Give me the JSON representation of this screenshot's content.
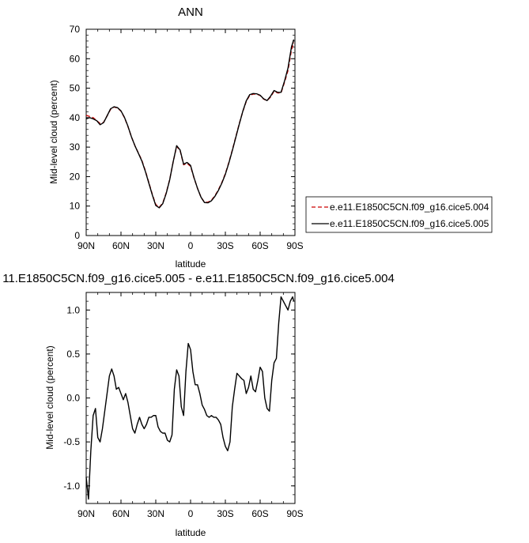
{
  "chart_data": [
    {
      "type": "line",
      "title": "ANN",
      "xlabel": "latitude",
      "ylabel": "Mid-level cloud (percent)",
      "xlim": [
        90,
        -90
      ],
      "ylim": [
        0,
        70
      ],
      "xticks": [
        90,
        60,
        30,
        0,
        -30,
        -60,
        -90
      ],
      "xtick_labels": [
        "90N",
        "60N",
        "30N",
        "0",
        "30S",
        "60S",
        "90S"
      ],
      "yticks": [
        0,
        10,
        20,
        30,
        40,
        50,
        60,
        70
      ],
      "ytick_labels": [
        "0",
        "10",
        "20",
        "30",
        "40",
        "50",
        "60",
        "70"
      ],
      "legend": "right",
      "series": [
        {
          "name": "e.e11.E1850C5CN.f09_g16.cice5.004",
          "color": "#cc0000",
          "dash": "dashed",
          "x": [
            90,
            87,
            84,
            81,
            78,
            75,
            72,
            69,
            66,
            63,
            60,
            57,
            54,
            51,
            48,
            45,
            42,
            39,
            36,
            33,
            30,
            27,
            24,
            21,
            18,
            15,
            12,
            9,
            6,
            3,
            0,
            -3,
            -6,
            -9,
            -12,
            -15,
            -18,
            -21,
            -24,
            -27,
            -30,
            -33,
            -36,
            -39,
            -42,
            -45,
            -48,
            -51,
            -54,
            -57,
            -60,
            -63,
            -66,
            -69,
            -72,
            -75,
            -78,
            -81,
            -84,
            -87,
            -89
          ],
          "y": [
            40.8,
            40.4,
            40.0,
            39.0,
            38.0,
            38.4,
            40.6,
            42.8,
            43.6,
            43.3,
            42.2,
            40.0,
            37.0,
            33.5,
            30.5,
            28.0,
            25.5,
            22.0,
            18.0,
            14.0,
            10.5,
            9.6,
            11.0,
            14.5,
            19.0,
            25.0,
            30.3,
            28.8,
            24.0,
            24.5,
            23.5,
            19.5,
            16.0,
            13.0,
            11.3,
            11.3,
            12.0,
            13.5,
            15.5,
            18.0,
            21.0,
            24.8,
            29.0,
            33.5,
            38.0,
            42.0,
            45.5,
            47.6,
            48.0,
            48.0,
            47.5,
            46.3,
            45.8,
            47.0,
            49.0,
            48.4,
            48.4,
            52.0,
            56.0,
            63.0,
            65.5
          ]
        },
        {
          "name": "e.e11.E1850C5CN.f09_g16.cice5.005",
          "color": "#000000",
          "dash": "solid",
          "x": [
            90,
            87,
            84,
            81,
            78,
            75,
            72,
            69,
            66,
            63,
            60,
            57,
            54,
            51,
            48,
            45,
            42,
            39,
            36,
            33,
            30,
            27,
            24,
            21,
            18,
            15,
            12,
            9,
            6,
            3,
            0,
            -3,
            -6,
            -9,
            -12,
            -15,
            -18,
            -21,
            -24,
            -27,
            -30,
            -33,
            -36,
            -39,
            -42,
            -45,
            -48,
            -51,
            -54,
            -57,
            -60,
            -63,
            -66,
            -69,
            -72,
            -75,
            -78,
            -81,
            -84,
            -87,
            -89
          ],
          "y": [
            39.6,
            40.0,
            39.6,
            39.0,
            37.6,
            38.3,
            40.6,
            43.0,
            43.7,
            43.4,
            42.3,
            40.1,
            37.1,
            33.5,
            30.5,
            27.9,
            25.3,
            21.8,
            17.8,
            13.8,
            10.2,
            9.4,
            10.8,
            14.3,
            18.9,
            25.0,
            30.5,
            29.0,
            24.2,
            24.8,
            23.8,
            19.6,
            16.0,
            13.0,
            11.2,
            11.1,
            11.8,
            13.3,
            15.3,
            17.8,
            20.8,
            24.6,
            28.8,
            33.3,
            37.8,
            42.1,
            45.7,
            47.8,
            48.2,
            48.1,
            47.6,
            46.4,
            45.8,
            47.3,
            49.2,
            48.6,
            48.6,
            52.4,
            56.8,
            64.0,
            66.5
          ]
        }
      ]
    },
    {
      "type": "line",
      "title": "11.E1850C5CN.f09_g16.cice5.005 - e.e11.E1850C5CN.f09_g16.cice5.004",
      "xlabel": "latitude",
      "ylabel": "Mid-level cloud (percent)",
      "xlim": [
        90,
        -90
      ],
      "ylim": [
        -1.2,
        1.2
      ],
      "xticks": [
        90,
        60,
        30,
        0,
        -30,
        -60,
        -90
      ],
      "xtick_labels": [
        "90N",
        "60N",
        "30N",
        "0",
        "30S",
        "60S",
        "90S"
      ],
      "yticks": [
        -1.0,
        -0.5,
        0.0,
        0.5,
        1.0
      ],
      "ytick_labels": [
        "-1.0",
        "-0.5",
        "0.0",
        "0.5",
        "1.0"
      ],
      "series": [
        {
          "color": "#000000",
          "x": [
            90,
            88,
            86,
            84,
            82,
            80,
            78,
            76,
            74,
            72,
            70,
            68,
            66,
            64,
            62,
            60,
            58,
            56,
            54,
            52,
            50,
            48,
            46,
            44,
            42,
            40,
            38,
            36,
            34,
            32,
            30,
            28,
            26,
            24,
            22,
            20,
            18,
            16,
            14,
            12,
            10,
            8,
            6,
            4,
            2,
            0,
            -2,
            -4,
            -6,
            -8,
            -10,
            -12,
            -14,
            -16,
            -18,
            -20,
            -22,
            -24,
            -26,
            -28,
            -30,
            -32,
            -34,
            -36,
            -38,
            -40,
            -42,
            -44,
            -46,
            -48,
            -50,
            -52,
            -54,
            -56,
            -58,
            -60,
            -62,
            -64,
            -66,
            -68,
            -70,
            -72,
            -74,
            -76,
            -78,
            -80,
            -82,
            -84,
            -86,
            -88,
            -89
          ],
          "y": [
            -0.9,
            -1.15,
            -0.6,
            -0.2,
            -0.12,
            -0.45,
            -0.5,
            -0.35,
            -0.15,
            0.05,
            0.25,
            0.33,
            0.25,
            0.1,
            0.12,
            0.05,
            -0.02,
            0.05,
            -0.05,
            -0.2,
            -0.35,
            -0.4,
            -0.3,
            -0.22,
            -0.3,
            -0.35,
            -0.3,
            -0.22,
            -0.22,
            -0.2,
            -0.2,
            -0.33,
            -0.38,
            -0.4,
            -0.4,
            -0.48,
            -0.5,
            -0.42,
            0.1,
            0.32,
            0.25,
            -0.1,
            -0.2,
            0.3,
            0.62,
            0.55,
            0.3,
            0.15,
            0.15,
            0.05,
            -0.08,
            -0.13,
            -0.2,
            -0.22,
            -0.2,
            -0.22,
            -0.22,
            -0.25,
            -0.3,
            -0.45,
            -0.55,
            -0.6,
            -0.5,
            -0.1,
            0.1,
            0.28,
            0.25,
            0.22,
            0.2,
            0.05,
            0.12,
            0.25,
            0.1,
            0.07,
            0.2,
            0.35,
            0.3,
            0.0,
            -0.12,
            -0.15,
            0.2,
            0.4,
            0.45,
            0.85,
            1.15,
            1.1,
            1.05,
            1.0,
            1.1,
            1.15,
            1.1
          ]
        }
      ]
    }
  ]
}
